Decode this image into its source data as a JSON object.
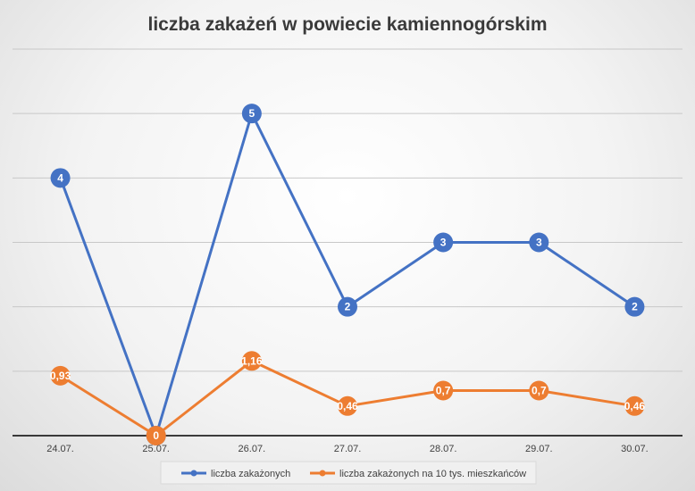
{
  "chart_data": {
    "type": "line",
    "title": "liczba zakażeń w powiecie kamiennogórskim",
    "categories": [
      "24.07.",
      "25.07.",
      "26.07.",
      "27.07.",
      "28.07.",
      "29.07.",
      "30.07."
    ],
    "series": [
      {
        "name": "liczba zakażonych",
        "color": "#4472C4",
        "values": [
          4,
          0,
          5,
          2,
          3,
          3,
          2
        ],
        "labels": [
          "4",
          "0",
          "5",
          "2",
          "3",
          "3",
          "2"
        ]
      },
      {
        "name": "liczba zakażonych na 10 tys. mieszkańców",
        "color": "#ED7D31",
        "values": [
          0.93,
          0,
          1.16,
          0.46,
          0.7,
          0.7,
          0.46
        ],
        "labels": [
          "0,93",
          "0",
          "1,16",
          "0,46",
          "0,7",
          "0,7",
          "0,46"
        ]
      }
    ],
    "ylim": [
      0,
      6
    ],
    "grid": true,
    "legend": "bottom"
  }
}
